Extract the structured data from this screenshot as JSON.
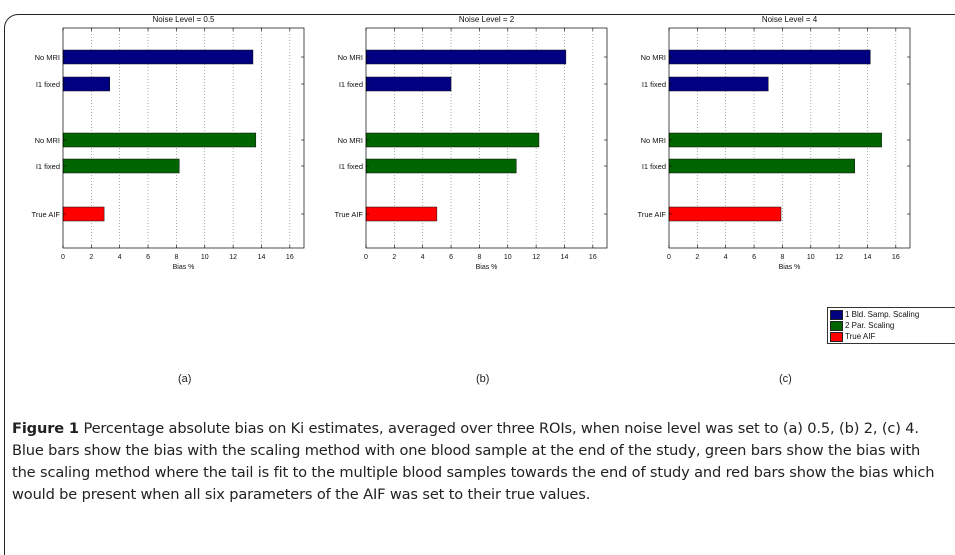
{
  "chart_data": [
    {
      "type": "bar",
      "orientation": "horizontal",
      "title": "Noise Level = 0.5",
      "xlabel": "Bias %",
      "xlim": [
        0,
        17
      ],
      "xticks": [
        0,
        2,
        4,
        6,
        8,
        10,
        12,
        14,
        16
      ],
      "grid": "vertical-dotted",
      "categories": [
        "No MRI",
        "I1 fixed",
        "No MRI",
        "I1 fixed",
        "True AIF"
      ],
      "values": [
        13.4,
        3.3,
        13.6,
        8.2,
        2.9
      ],
      "series_of_bar": [
        "1 Bld. Samp. Scaling",
        "1 Bld. Samp. Scaling",
        "2 Par. Scaling",
        "2 Par. Scaling",
        "True AIF"
      ]
    },
    {
      "type": "bar",
      "orientation": "horizontal",
      "title": "Noise Level = 2",
      "xlabel": "Bias %",
      "xlim": [
        0,
        17
      ],
      "xticks": [
        0,
        2,
        4,
        6,
        8,
        10,
        12,
        14,
        16
      ],
      "grid": "vertical-dotted",
      "categories": [
        "No MRI",
        "I1 fixed",
        "No MRI",
        "I1 fixed",
        "True AIF"
      ],
      "values": [
        14.1,
        6.0,
        12.2,
        10.6,
        5.0
      ],
      "series_of_bar": [
        "1 Bld. Samp. Scaling",
        "1 Bld. Samp. Scaling",
        "2 Par. Scaling",
        "2 Par. Scaling",
        "True AIF"
      ]
    },
    {
      "type": "bar",
      "orientation": "horizontal",
      "title": "Noise Level = 4",
      "xlabel": "Bias %",
      "xlim": [
        0,
        17
      ],
      "xticks": [
        0,
        2,
        4,
        6,
        8,
        10,
        12,
        14,
        16
      ],
      "grid": "vertical-dotted",
      "categories": [
        "No MRI",
        "I1 fixed",
        "No MRI",
        "I1 fixed",
        "True AIF"
      ],
      "values": [
        14.2,
        7.0,
        15.0,
        13.1,
        7.9
      ],
      "series_of_bar": [
        "1 Bld. Samp. Scaling",
        "1 Bld. Samp. Scaling",
        "2 Par. Scaling",
        "2 Par. Scaling",
        "True AIF"
      ]
    }
  ],
  "legend": {
    "placement": "lower-right",
    "items": [
      {
        "label": "1 Bld. Samp. Scaling",
        "color": "#000080"
      },
      {
        "label": "2 Par. Scaling",
        "color": "#006400"
      },
      {
        "label": "True AIF",
        "color": "#ff0000"
      }
    ]
  },
  "panel_labels": [
    "(a)",
    "(b)",
    "(c)"
  ],
  "caption": {
    "label": "Figure 1",
    "text": "Percentage absolute bias on Ki estimates, averaged over three ROIs, when noise level was set to (a) 0.5, (b) 2, (c) 4. Blue bars show the bias with the scaling method with one blood sample at the end of the study, green bars show the bias with the scaling method where the tail is fit to the multiple blood samples towards the end of study and red bars show the bias which would be present when all six parameters of the AIF was set to their true values."
  }
}
